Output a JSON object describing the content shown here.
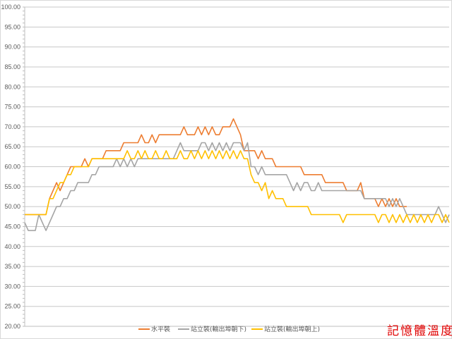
{
  "chart_data": {
    "type": "line",
    "title": "",
    "xlabel": "",
    "ylabel": "",
    "ylim": [
      20,
      100
    ],
    "ytick_step": 5,
    "ytick_labels": [
      "20.00",
      "25.00",
      "30.00",
      "35.00",
      "40.00",
      "45.00",
      "50.00",
      "55.00",
      "60.00",
      "65.00",
      "70.00",
      "75.00",
      "80.00",
      "85.00",
      "90.00",
      "95.00",
      "100.00"
    ],
    "grid": true,
    "legend_position": "bottom",
    "series": [
      {
        "name": "水平裝",
        "color": "#ED7D31",
        "values": [
          48,
          48,
          48,
          48,
          48,
          48,
          48,
          52,
          54,
          56,
          54,
          56,
          58,
          60,
          60,
          60,
          60,
          62,
          60,
          62,
          62,
          62,
          62,
          64,
          64,
          64,
          64,
          64,
          66,
          66,
          66,
          66,
          66,
          68,
          66,
          66,
          68,
          66,
          68,
          68,
          68,
          68,
          68,
          68,
          68,
          70,
          68,
          68,
          68,
          70,
          68,
          70,
          68,
          70,
          68,
          68,
          70,
          70,
          70,
          72,
          70,
          68,
          64,
          64,
          64,
          64,
          62,
          64,
          62,
          62,
          62,
          60,
          60,
          60,
          60,
          60,
          60,
          60,
          60,
          58,
          58,
          58,
          58,
          58,
          58,
          56,
          56,
          56,
          56,
          56,
          56,
          54,
          54,
          54,
          54,
          56,
          52,
          52,
          52,
          52,
          50,
          52,
          50,
          52,
          50,
          52,
          50,
          50,
          50
        ]
      },
      {
        "name": "站立裝(輸出埠朝下)",
        "color": "#A5A5A5",
        "values": [
          46,
          44,
          44,
          44,
          48,
          46,
          44,
          46,
          48,
          50,
          50,
          52,
          52,
          54,
          54,
          56,
          56,
          56,
          56,
          58,
          58,
          60,
          60,
          60,
          60,
          60,
          62,
          60,
          62,
          60,
          62,
          60,
          62,
          62,
          62,
          62,
          62,
          62,
          62,
          62,
          62,
          62,
          62,
          64,
          66,
          64,
          64,
          64,
          64,
          64,
          66,
          66,
          64,
          66,
          64,
          66,
          64,
          66,
          64,
          66,
          66,
          66,
          64,
          66,
          60,
          60,
          58,
          60,
          58,
          58,
          58,
          58,
          58,
          58,
          58,
          56,
          54,
          56,
          54,
          56,
          56,
          54,
          54,
          56,
          54,
          54,
          54,
          54,
          54,
          54,
          54,
          54,
          54,
          54,
          54,
          54,
          52,
          52,
          52,
          52,
          52,
          52,
          52,
          50,
          52,
          50,
          52,
          50,
          48,
          48,
          48,
          48,
          48,
          48,
          48,
          48,
          48,
          50,
          48,
          46,
          48
        ]
      },
      {
        "name": "站立裝(輸出埠朝上)",
        "color": "#FFC000",
        "values": [
          48,
          48,
          48,
          48,
          48,
          48,
          48,
          52,
          52,
          54,
          56,
          56,
          58,
          58,
          60,
          60,
          60,
          60,
          60,
          62,
          62,
          62,
          62,
          62,
          62,
          62,
          62,
          62,
          62,
          64,
          62,
          62,
          64,
          62,
          64,
          62,
          62,
          64,
          62,
          62,
          64,
          62,
          62,
          62,
          64,
          62,
          62,
          64,
          62,
          64,
          62,
          64,
          62,
          64,
          62,
          64,
          62,
          64,
          62,
          64,
          62,
          64,
          62,
          62,
          58,
          56,
          56,
          54,
          56,
          52,
          54,
          52,
          52,
          52,
          50,
          50,
          50,
          50,
          50,
          50,
          50,
          48,
          48,
          48,
          48,
          48,
          48,
          48,
          48,
          48,
          46,
          48,
          48,
          48,
          48,
          48,
          48,
          48,
          48,
          48,
          46,
          48,
          48,
          46,
          48,
          46,
          48,
          46,
          48,
          46,
          48,
          46,
          48,
          46,
          48,
          46,
          48,
          48,
          46,
          48,
          46
        ]
      }
    ]
  },
  "watermark": "記憶體溫度"
}
